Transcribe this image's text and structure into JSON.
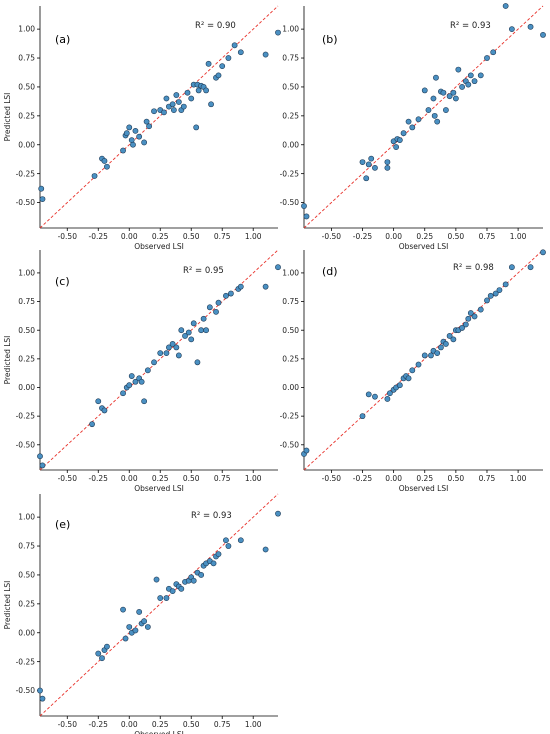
{
  "figure": {
    "marker_color": "#4a90c2",
    "marker_edge_color": "#1f3b57",
    "reference_line_color": "#e8322b"
  },
  "chart_data": [
    {
      "type": "scatter",
      "panel": "(a)",
      "r2_label": "R² = 0.90",
      "xlabel": "Observed LSI",
      "ylabel": "Predicted LSI",
      "xlim": [
        -0.72,
        1.2
      ],
      "ylim": [
        -0.72,
        1.2
      ],
      "xticks": [
        "-0.50",
        "-0.25",
        "0.00",
        "0.25",
        "0.50",
        "0.75",
        "1.00"
      ],
      "yticks": [
        "-0.50",
        "-0.25",
        "0.00",
        "0.25",
        "0.50",
        "0.75",
        "1.00"
      ],
      "reference_line": "y = x",
      "points": [
        [
          -0.71,
          -0.38
        ],
        [
          -0.7,
          -0.47
        ],
        [
          -0.28,
          -0.27
        ],
        [
          -0.22,
          -0.12
        ],
        [
          -0.2,
          -0.14
        ],
        [
          -0.18,
          -0.19
        ],
        [
          -0.05,
          -0.05
        ],
        [
          -0.03,
          0.08
        ],
        [
          -0.02,
          0.1
        ],
        [
          0.0,
          0.15
        ],
        [
          0.02,
          0.04
        ],
        [
          0.03,
          0.0
        ],
        [
          0.05,
          0.12
        ],
        [
          0.08,
          0.07
        ],
        [
          0.12,
          0.02
        ],
        [
          0.14,
          0.2
        ],
        [
          0.16,
          0.16
        ],
        [
          0.2,
          0.29
        ],
        [
          0.25,
          0.3
        ],
        [
          0.28,
          0.28
        ],
        [
          0.3,
          0.4
        ],
        [
          0.32,
          0.33
        ],
        [
          0.35,
          0.35
        ],
        [
          0.36,
          0.3
        ],
        [
          0.38,
          0.43
        ],
        [
          0.4,
          0.37
        ],
        [
          0.42,
          0.3
        ],
        [
          0.44,
          0.33
        ],
        [
          0.47,
          0.45
        ],
        [
          0.5,
          0.4
        ],
        [
          0.52,
          0.52
        ],
        [
          0.54,
          0.15
        ],
        [
          0.55,
          0.52
        ],
        [
          0.56,
          0.47
        ],
        [
          0.58,
          0.51
        ],
        [
          0.6,
          0.5
        ],
        [
          0.62,
          0.47
        ],
        [
          0.64,
          0.7
        ],
        [
          0.66,
          0.35
        ],
        [
          0.7,
          0.58
        ],
        [
          0.72,
          0.6
        ],
        [
          0.75,
          0.68
        ],
        [
          0.8,
          0.75
        ],
        [
          0.85,
          0.86
        ],
        [
          0.9,
          0.8
        ],
        [
          1.1,
          0.78
        ],
        [
          1.2,
          0.97
        ]
      ]
    },
    {
      "type": "scatter",
      "panel": "(b)",
      "r2_label": "R² = 0.93",
      "xlabel": "Observed LSI",
      "ylabel": "",
      "xlim": [
        -0.72,
        1.2
      ],
      "ylim": [
        -0.72,
        1.2
      ],
      "xticks": [
        "-0.50",
        "-0.25",
        "0.00",
        "0.25",
        "0.50",
        "0.75",
        "1.00"
      ],
      "yticks": [
        "-0.50",
        "-0.25",
        "0.00",
        "0.25",
        "0.50",
        "0.75",
        "1.00"
      ],
      "reference_line": "y = x",
      "points": [
        [
          -0.72,
          -0.53
        ],
        [
          -0.7,
          -0.62
        ],
        [
          -0.25,
          -0.15
        ],
        [
          -0.22,
          -0.29
        ],
        [
          -0.2,
          -0.17
        ],
        [
          -0.18,
          -0.12
        ],
        [
          -0.15,
          -0.2
        ],
        [
          -0.05,
          -0.15
        ],
        [
          -0.05,
          -0.2
        ],
        [
          0.0,
          0.03
        ],
        [
          0.02,
          -0.02
        ],
        [
          0.03,
          0.05
        ],
        [
          0.05,
          0.04
        ],
        [
          0.08,
          0.1
        ],
        [
          0.12,
          0.2
        ],
        [
          0.15,
          0.15
        ],
        [
          0.2,
          0.22
        ],
        [
          0.25,
          0.47
        ],
        [
          0.28,
          0.3
        ],
        [
          0.32,
          0.4
        ],
        [
          0.33,
          0.25
        ],
        [
          0.34,
          0.58
        ],
        [
          0.35,
          0.2
        ],
        [
          0.38,
          0.46
        ],
        [
          0.4,
          0.45
        ],
        [
          0.42,
          0.3
        ],
        [
          0.45,
          0.42
        ],
        [
          0.48,
          0.45
        ],
        [
          0.5,
          0.4
        ],
        [
          0.52,
          0.65
        ],
        [
          0.55,
          0.5
        ],
        [
          0.58,
          0.55
        ],
        [
          0.6,
          0.52
        ],
        [
          0.62,
          0.6
        ],
        [
          0.65,
          0.55
        ],
        [
          0.7,
          0.6
        ],
        [
          0.75,
          0.75
        ],
        [
          0.8,
          0.8
        ],
        [
          0.9,
          1.2
        ],
        [
          0.95,
          1.0
        ],
        [
          1.1,
          1.02
        ],
        [
          1.2,
          0.95
        ]
      ]
    },
    {
      "type": "scatter",
      "panel": "(c)",
      "r2_label": "R² = 0.95",
      "xlabel": "Observed LSI",
      "ylabel": "Predicted LSI",
      "xlim": [
        -0.72,
        1.2
      ],
      "ylim": [
        -0.72,
        1.2
      ],
      "xticks": [
        "-0.50",
        "-0.25",
        "0.00",
        "0.25",
        "0.50",
        "0.75",
        "1.00"
      ],
      "yticks": [
        "-0.50",
        "-0.25",
        "0.00",
        "0.25",
        "0.50",
        "0.75",
        "1.00"
      ],
      "reference_line": "y = x",
      "points": [
        [
          -0.72,
          -0.6
        ],
        [
          -0.7,
          -0.68
        ],
        [
          -0.3,
          -0.32
        ],
        [
          -0.25,
          -0.12
        ],
        [
          -0.22,
          -0.18
        ],
        [
          -0.2,
          -0.2
        ],
        [
          -0.05,
          -0.05
        ],
        [
          -0.02,
          0.0
        ],
        [
          0.0,
          0.02
        ],
        [
          0.02,
          0.1
        ],
        [
          0.05,
          0.05
        ],
        [
          0.08,
          0.08
        ],
        [
          0.1,
          0.05
        ],
        [
          0.12,
          -0.12
        ],
        [
          0.15,
          0.15
        ],
        [
          0.2,
          0.22
        ],
        [
          0.25,
          0.3
        ],
        [
          0.3,
          0.3
        ],
        [
          0.32,
          0.35
        ],
        [
          0.35,
          0.38
        ],
        [
          0.38,
          0.35
        ],
        [
          0.4,
          0.28
        ],
        [
          0.42,
          0.5
        ],
        [
          0.45,
          0.45
        ],
        [
          0.48,
          0.48
        ],
        [
          0.5,
          0.42
        ],
        [
          0.52,
          0.56
        ],
        [
          0.55,
          0.22
        ],
        [
          0.58,
          0.5
        ],
        [
          0.6,
          0.6
        ],
        [
          0.62,
          0.5
        ],
        [
          0.65,
          0.7
        ],
        [
          0.7,
          0.66
        ],
        [
          0.72,
          0.74
        ],
        [
          0.78,
          0.8
        ],
        [
          0.82,
          0.82
        ],
        [
          0.88,
          0.86
        ],
        [
          0.9,
          0.88
        ],
        [
          1.1,
          0.88
        ],
        [
          1.2,
          1.05
        ]
      ]
    },
    {
      "type": "scatter",
      "panel": "(d)",
      "r2_label": "R² = 0.98",
      "xlabel": "Observed LSI",
      "ylabel": "",
      "xlim": [
        -0.72,
        1.2
      ],
      "ylim": [
        -0.72,
        1.2
      ],
      "xticks": [
        "-0.50",
        "-0.25",
        "0.00",
        "0.25",
        "0.50",
        "0.75",
        "1.00"
      ],
      "yticks": [
        "-0.50",
        "-0.25",
        "0.00",
        "0.25",
        "0.50",
        "0.75",
        "1.00"
      ],
      "reference_line": "y = x",
      "points": [
        [
          -0.72,
          -0.58
        ],
        [
          -0.7,
          -0.55
        ],
        [
          -0.25,
          -0.25
        ],
        [
          -0.2,
          -0.06
        ],
        [
          -0.15,
          -0.08
        ],
        [
          -0.05,
          -0.1
        ],
        [
          -0.03,
          -0.05
        ],
        [
          0.0,
          -0.02
        ],
        [
          0.02,
          0.0
        ],
        [
          0.05,
          0.02
        ],
        [
          0.08,
          0.08
        ],
        [
          0.1,
          0.1
        ],
        [
          0.12,
          0.08
        ],
        [
          0.15,
          0.15
        ],
        [
          0.2,
          0.2
        ],
        [
          0.25,
          0.28
        ],
        [
          0.3,
          0.28
        ],
        [
          0.32,
          0.32
        ],
        [
          0.35,
          0.3
        ],
        [
          0.38,
          0.35
        ],
        [
          0.4,
          0.4
        ],
        [
          0.42,
          0.38
        ],
        [
          0.45,
          0.45
        ],
        [
          0.48,
          0.42
        ],
        [
          0.5,
          0.5
        ],
        [
          0.52,
          0.5
        ],
        [
          0.55,
          0.52
        ],
        [
          0.58,
          0.55
        ],
        [
          0.6,
          0.6
        ],
        [
          0.62,
          0.65
        ],
        [
          0.65,
          0.62
        ],
        [
          0.7,
          0.68
        ],
        [
          0.75,
          0.76
        ],
        [
          0.78,
          0.8
        ],
        [
          0.82,
          0.82
        ],
        [
          0.85,
          0.85
        ],
        [
          0.9,
          0.9
        ],
        [
          0.95,
          1.05
        ],
        [
          1.1,
          1.05
        ],
        [
          1.2,
          1.18
        ]
      ]
    },
    {
      "type": "scatter",
      "panel": "(e)",
      "r2_label": "R² = 0.93",
      "xlabel": "Observed LSI",
      "ylabel": "Predicted LSI",
      "xlim": [
        -0.72,
        1.2
      ],
      "ylim": [
        -0.72,
        1.2
      ],
      "xticks": [
        "-0.50",
        "-0.25",
        "0.00",
        "0.25",
        "0.50",
        "0.75",
        "1.00"
      ],
      "yticks": [
        "-0.50",
        "-0.25",
        "0.00",
        "0.25",
        "0.50",
        "0.75",
        "1.00"
      ],
      "reference_line": "y = x",
      "points": [
        [
          -0.72,
          -0.5
        ],
        [
          -0.7,
          -0.57
        ],
        [
          -0.25,
          -0.18
        ],
        [
          -0.22,
          -0.22
        ],
        [
          -0.2,
          -0.15
        ],
        [
          -0.18,
          -0.12
        ],
        [
          -0.05,
          0.2
        ],
        [
          -0.03,
          -0.05
        ],
        [
          0.0,
          0.05
        ],
        [
          0.02,
          0.0
        ],
        [
          0.05,
          0.02
        ],
        [
          0.08,
          0.18
        ],
        [
          0.1,
          0.08
        ],
        [
          0.12,
          0.1
        ],
        [
          0.15,
          0.05
        ],
        [
          0.22,
          0.46
        ],
        [
          0.25,
          0.3
        ],
        [
          0.3,
          0.3
        ],
        [
          0.32,
          0.38
        ],
        [
          0.35,
          0.36
        ],
        [
          0.38,
          0.42
        ],
        [
          0.4,
          0.4
        ],
        [
          0.42,
          0.38
        ],
        [
          0.45,
          0.44
        ],
        [
          0.48,
          0.45
        ],
        [
          0.5,
          0.48
        ],
        [
          0.52,
          0.45
        ],
        [
          0.55,
          0.52
        ],
        [
          0.58,
          0.5
        ],
        [
          0.6,
          0.58
        ],
        [
          0.62,
          0.6
        ],
        [
          0.65,
          0.62
        ],
        [
          0.68,
          0.6
        ],
        [
          0.7,
          0.66
        ],
        [
          0.72,
          0.68
        ],
        [
          0.78,
          0.8
        ],
        [
          0.8,
          0.75
        ],
        [
          0.9,
          0.8
        ],
        [
          1.1,
          0.72
        ],
        [
          1.2,
          1.03
        ]
      ]
    }
  ]
}
